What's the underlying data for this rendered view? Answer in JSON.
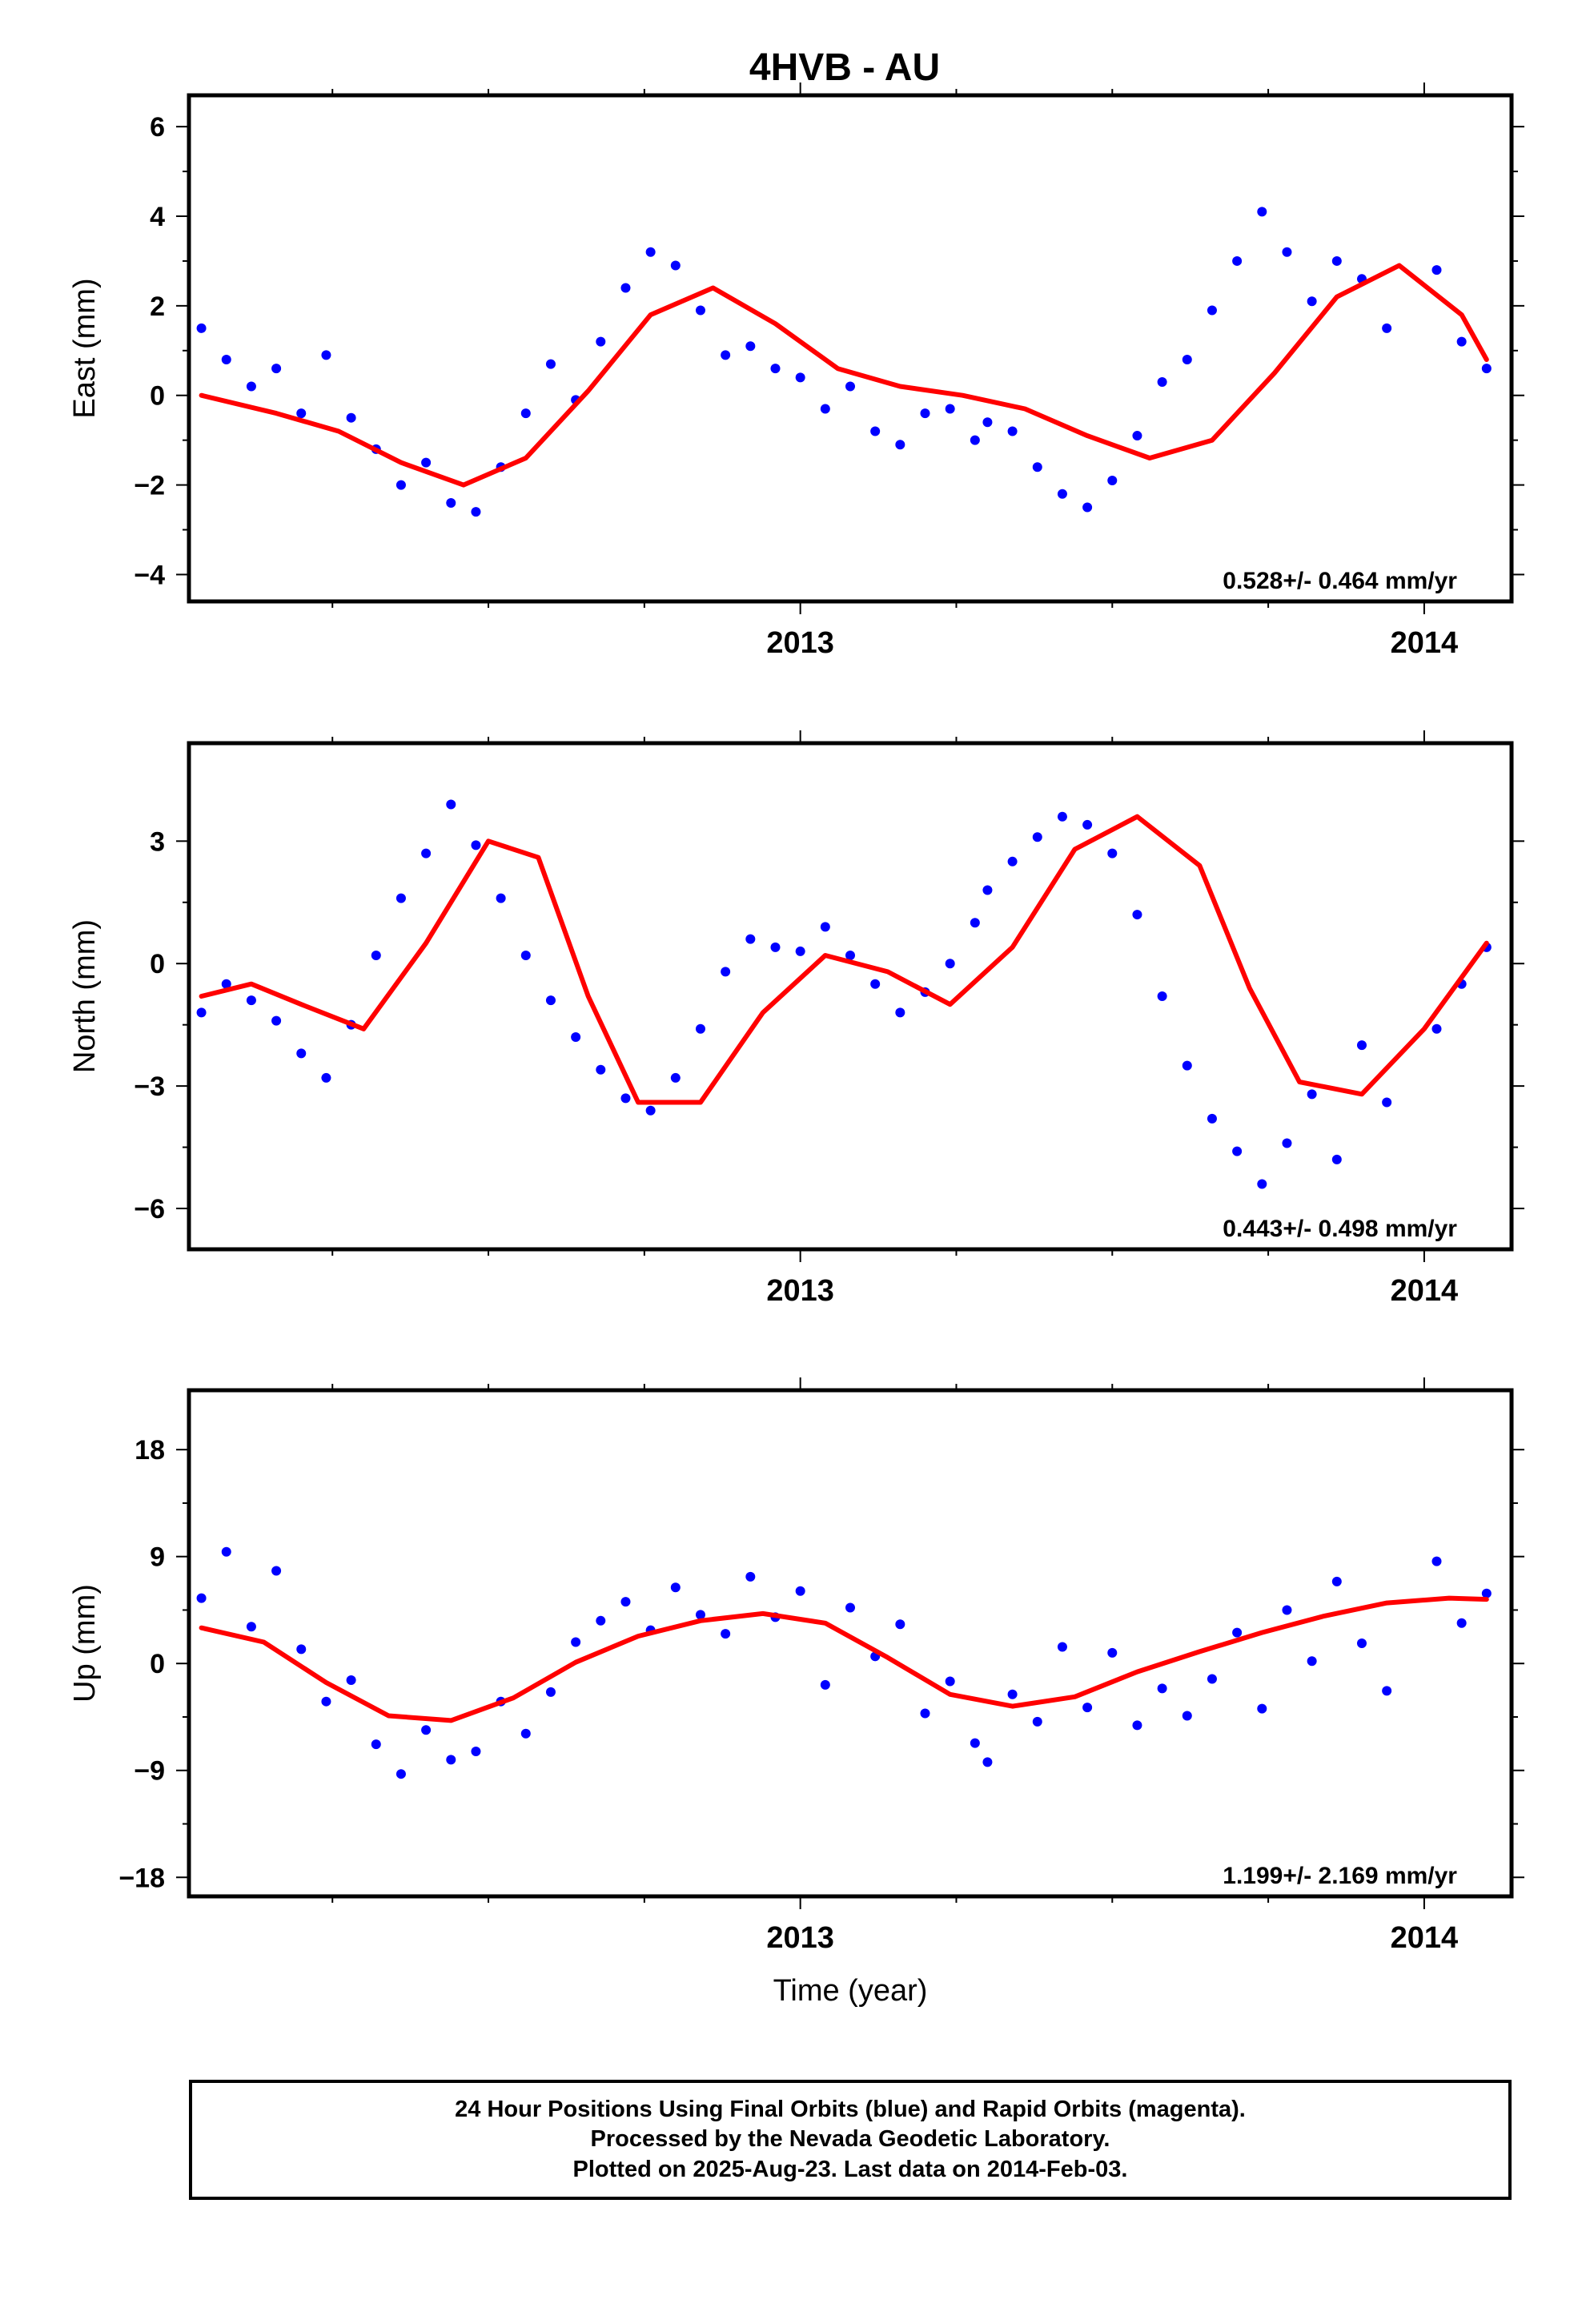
{
  "title": "4HVB - AU",
  "colors": {
    "data": "#0000ff",
    "fit": "#ff0000",
    "frame": "#000000"
  },
  "chart_data": [
    {
      "type": "scatter",
      "ylabel": "East (mm)",
      "xticks": [
        2013,
        2014
      ],
      "yticks": [
        -4,
        -2,
        0,
        2,
        4,
        6
      ],
      "xlim": [
        2012.02,
        2014.14
      ],
      "ylim": [
        -4.6,
        6.7
      ],
      "rate_label": "0.528+/- 0.464 mm/yr",
      "series": [
        {
          "kind": "points",
          "x": [
            2012.04,
            2012.08,
            2012.12,
            2012.16,
            2012.2,
            2012.24,
            2012.28,
            2012.32,
            2012.36,
            2012.4,
            2012.44,
            2012.48,
            2012.52,
            2012.56,
            2012.6,
            2012.64,
            2012.68,
            2012.72,
            2012.76,
            2012.8,
            2012.84,
            2012.88,
            2012.92,
            2012.96,
            2013.0,
            2013.04,
            2013.08,
            2013.12,
            2013.16,
            2013.2,
            2013.24,
            2013.28,
            2013.3,
            2013.34,
            2013.38,
            2013.42,
            2013.46,
            2013.5,
            2013.54,
            2013.58,
            2013.62,
            2013.66,
            2013.7,
            2013.74,
            2013.78,
            2013.82,
            2013.86,
            2013.9,
            2013.94,
            2014.02,
            2014.06,
            2014.1
          ],
          "y": [
            1.5,
            0.8,
            0.2,
            0.6,
            -0.4,
            0.9,
            -0.5,
            -1.2,
            -2.0,
            -1.5,
            -2.4,
            -2.6,
            -1.6,
            -0.4,
            0.7,
            -0.1,
            1.2,
            2.4,
            3.2,
            2.9,
            1.9,
            0.9,
            1.1,
            0.6,
            0.4,
            -0.3,
            0.2,
            -0.8,
            -1.1,
            -0.4,
            -0.3,
            -1.0,
            -0.6,
            -0.8,
            -1.6,
            -2.2,
            -2.5,
            -1.9,
            -0.9,
            0.3,
            0.8,
            1.9,
            3.0,
            4.1,
            3.2,
            2.1,
            3.0,
            2.6,
            1.5,
            2.8,
            1.2,
            0.6
          ]
        },
        {
          "kind": "fit",
          "x": [
            2012.04,
            2012.16,
            2012.26,
            2012.36,
            2012.46,
            2012.56,
            2012.66,
            2012.76,
            2012.86,
            2012.96,
            2013.06,
            2013.16,
            2013.26,
            2013.36,
            2013.46,
            2013.56,
            2013.66,
            2013.76,
            2013.86,
            2013.96,
            2014.06,
            2014.1
          ],
          "y": [
            0.0,
            -0.4,
            -0.8,
            -1.5,
            -2.0,
            -1.4,
            0.1,
            1.8,
            2.4,
            1.6,
            0.6,
            0.2,
            0.0,
            -0.3,
            -0.9,
            -1.4,
            -1.0,
            0.5,
            2.2,
            2.9,
            1.8,
            0.8
          ]
        }
      ]
    },
    {
      "type": "scatter",
      "ylabel": "North (mm)",
      "xticks": [
        2013,
        2014
      ],
      "yticks": [
        -6,
        -3,
        0,
        3
      ],
      "xlim": [
        2012.02,
        2014.14
      ],
      "ylim": [
        -7.0,
        5.4
      ],
      "rate_label": "0.443+/- 0.498 mm/yr",
      "series": [
        {
          "kind": "points",
          "x": [
            2012.04,
            2012.08,
            2012.12,
            2012.16,
            2012.2,
            2012.24,
            2012.28,
            2012.32,
            2012.36,
            2012.4,
            2012.44,
            2012.48,
            2012.52,
            2012.56,
            2012.6,
            2012.64,
            2012.68,
            2012.72,
            2012.76,
            2012.8,
            2012.84,
            2012.88,
            2012.92,
            2012.96,
            2013.0,
            2013.04,
            2013.08,
            2013.12,
            2013.16,
            2013.2,
            2013.24,
            2013.28,
            2013.3,
            2013.34,
            2013.38,
            2013.42,
            2013.46,
            2013.5,
            2013.54,
            2013.58,
            2013.62,
            2013.66,
            2013.7,
            2013.74,
            2013.78,
            2013.82,
            2013.86,
            2013.9,
            2013.94,
            2014.02,
            2014.06,
            2014.1
          ],
          "y": [
            -1.2,
            -0.5,
            -0.9,
            -1.4,
            -2.2,
            -2.8,
            -1.5,
            0.2,
            1.6,
            2.7,
            3.9,
            2.9,
            1.6,
            0.2,
            -0.9,
            -1.8,
            -2.6,
            -3.3,
            -3.6,
            -2.8,
            -1.6,
            -0.2,
            0.6,
            0.4,
            0.3,
            0.9,
            0.2,
            -0.5,
            -1.2,
            -0.7,
            0.0,
            1.0,
            1.8,
            2.5,
            3.1,
            3.6,
            3.4,
            2.7,
            1.2,
            -0.8,
            -2.5,
            -3.8,
            -4.6,
            -5.4,
            -4.4,
            -3.2,
            -4.8,
            -2.0,
            -3.4,
            -1.6,
            -0.5,
            0.4
          ]
        },
        {
          "kind": "fit",
          "x": [
            2012.04,
            2012.12,
            2012.2,
            2012.3,
            2012.4,
            2012.5,
            2012.58,
            2012.66,
            2012.74,
            2012.84,
            2012.94,
            2013.04,
            2013.14,
            2013.24,
            2013.34,
            2013.44,
            2013.54,
            2013.64,
            2013.72,
            2013.8,
            2013.9,
            2014.0,
            2014.1
          ],
          "y": [
            -0.8,
            -0.5,
            -1.0,
            -1.6,
            0.5,
            3.0,
            2.6,
            -0.8,
            -3.4,
            -3.4,
            -1.2,
            0.2,
            -0.2,
            -1.0,
            0.4,
            2.8,
            3.6,
            2.4,
            -0.6,
            -2.9,
            -3.2,
            -1.6,
            0.5
          ]
        }
      ]
    },
    {
      "type": "scatter",
      "ylabel": "Up (mm)",
      "xlabel": "Time (year)",
      "xticks": [
        2013,
        2014
      ],
      "yticks": [
        -18,
        -9,
        0,
        9,
        18
      ],
      "xlim": [
        2012.02,
        2014.14
      ],
      "ylim": [
        -19.6,
        23.0
      ],
      "rate_label": "1.199+/- 2.169 mm/yr",
      "series": [
        {
          "kind": "points",
          "x": [
            2012.04,
            2012.08,
            2012.12,
            2012.16,
            2012.2,
            2012.24,
            2012.28,
            2012.32,
            2012.36,
            2012.4,
            2012.44,
            2012.48,
            2012.52,
            2012.56,
            2012.6,
            2012.64,
            2012.68,
            2012.72,
            2012.76,
            2012.8,
            2012.84,
            2012.88,
            2012.92,
            2012.96,
            2013.0,
            2013.04,
            2013.08,
            2013.12,
            2013.16,
            2013.2,
            2013.24,
            2013.28,
            2013.3,
            2013.34,
            2013.38,
            2013.42,
            2013.46,
            2013.5,
            2013.54,
            2013.58,
            2013.62,
            2013.66,
            2013.7,
            2013.74,
            2013.78,
            2013.82,
            2013.86,
            2013.9,
            2013.94,
            2014.02,
            2014.06,
            2014.1
          ],
          "y": [
            5.5,
            9.4,
            3.1,
            7.8,
            1.2,
            -3.2,
            -1.4,
            -6.8,
            -9.3,
            -5.6,
            -8.1,
            -7.4,
            -3.2,
            -5.9,
            -2.4,
            1.8,
            3.6,
            5.2,
            2.8,
            6.4,
            4.1,
            2.5,
            7.3,
            3.9,
            6.1,
            -1.8,
            4.7,
            0.6,
            3.3,
            -4.2,
            -1.5,
            -6.7,
            -8.3,
            -2.6,
            -4.9,
            1.4,
            -3.7,
            0.9,
            -5.2,
            -2.1,
            -4.4,
            -1.3,
            2.6,
            -3.8,
            4.5,
            0.2,
            6.9,
            1.7,
            -2.3,
            8.6,
            3.4,
            5.9
          ]
        },
        {
          "kind": "fit",
          "x": [
            2012.04,
            2012.14,
            2012.24,
            2012.34,
            2012.44,
            2012.54,
            2012.64,
            2012.74,
            2012.84,
            2012.94,
            2013.04,
            2013.14,
            2013.24,
            2013.34,
            2013.44,
            2013.54,
            2013.64,
            2013.74,
            2013.84,
            2013.94,
            2014.04,
            2014.1
          ],
          "y": [
            3.0,
            1.8,
            -1.6,
            -4.4,
            -4.8,
            -2.9,
            0.1,
            2.3,
            3.6,
            4.2,
            3.4,
            0.5,
            -2.6,
            -3.6,
            -2.8,
            -0.7,
            1.0,
            2.6,
            4.0,
            5.1,
            5.5,
            5.4
          ]
        }
      ]
    }
  ],
  "caption": {
    "line1": "24 Hour Positions Using Final Orbits (blue) and Rapid Orbits (magenta).",
    "line2": "Processed by the Nevada Geodetic Laboratory.",
    "line3": "Plotted on 2025-Aug-23. Last data on 2014-Feb-03."
  }
}
